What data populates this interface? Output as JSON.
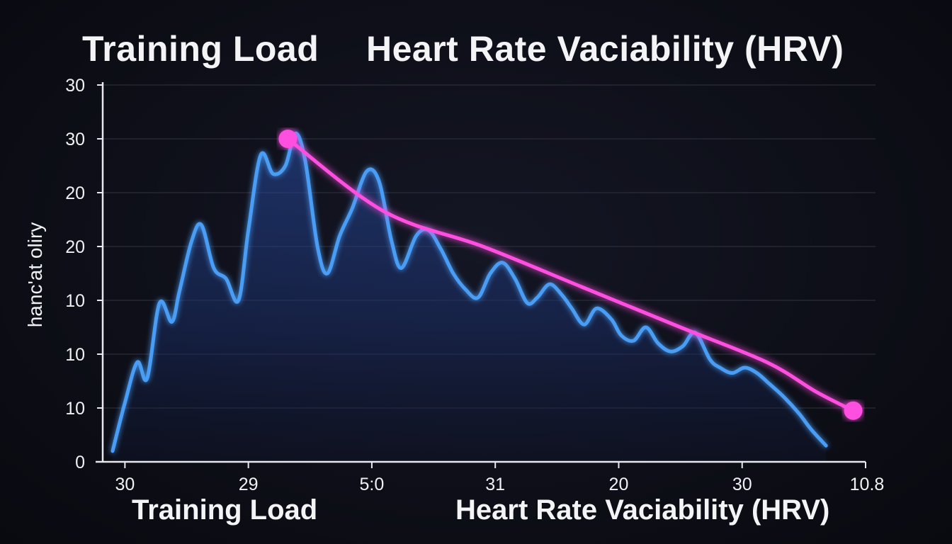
{
  "chart_data": {
    "type": "line",
    "title_left": "Training Load",
    "title_right": "Heart Rate Vaciability (HRV)",
    "xlabel_left": "Training Load",
    "xlabel_right": "Heart Rate Vaciability (HRV)",
    "ylabel": "hanc'at oliry",
    "y_tick_labels": [
      "0",
      "10",
      "10",
      "10",
      "20",
      "20",
      "30",
      "30"
    ],
    "y_tick_values": [
      0,
      1,
      2,
      3,
      4,
      5,
      6,
      7
    ],
    "x_tick_labels": [
      "30",
      "29",
      "5:0",
      "31",
      "20",
      "30",
      "10.8"
    ],
    "x_tick_values": [
      0.5,
      5.5,
      10.5,
      15.5,
      20.5,
      25.5,
      30.5
    ],
    "xlim": [
      -0.4,
      30.5
    ],
    "ylim": [
      0,
      7
    ],
    "grid": true,
    "series": [
      {
        "name": "Training Load",
        "color": "#4a9df5",
        "x": [
          0,
          0.5,
          1.0,
          1.4,
          1.9,
          2.4,
          2.7,
          3.2,
          3.6,
          4.1,
          4.6,
          5.1,
          5.5,
          6.0,
          6.5,
          7.0,
          7.4,
          7.8,
          8.3,
          8.7,
          9.2,
          9.7,
          10.3,
          10.8,
          11.3,
          11.7,
          12.3,
          12.8,
          13.3,
          13.8,
          14.3,
          14.8,
          15.3,
          15.8,
          16.3,
          16.8,
          17.2,
          17.7,
          18.2,
          18.6,
          19.1,
          19.6,
          20.2,
          20.6,
          21.1,
          21.6,
          22.1,
          22.6,
          23.1,
          23.6,
          24.2,
          24.6,
          25.1,
          25.6,
          26.1,
          26.6,
          27.2,
          27.8,
          28.3,
          28.9
        ],
        "y": [
          0.2,
          1.1,
          1.85,
          1.55,
          2.95,
          2.6,
          3.15,
          4.1,
          4.4,
          3.6,
          3.4,
          3.0,
          4.3,
          5.7,
          5.35,
          5.5,
          6.1,
          5.6,
          4.0,
          3.5,
          4.2,
          4.7,
          5.4,
          5.2,
          4.1,
          3.6,
          4.2,
          4.3,
          3.95,
          3.5,
          3.2,
          3.05,
          3.5,
          3.7,
          3.4,
          2.95,
          3.05,
          3.3,
          3.1,
          2.85,
          2.55,
          2.85,
          2.65,
          2.35,
          2.25,
          2.5,
          2.2,
          2.05,
          2.15,
          2.4,
          1.9,
          1.75,
          1.65,
          1.75,
          1.65,
          1.45,
          1.2,
          0.9,
          0.6,
          0.3
        ]
      },
      {
        "name": "Heart Rate Vaciability (HRV)",
        "color": "#ff4fe0",
        "x": [
          7.1,
          11.0,
          15.0,
          19.0,
          23.0,
          26.5,
          28.5,
          30.0
        ],
        "y": [
          6.0,
          4.65,
          4.0,
          3.25,
          2.5,
          1.85,
          1.3,
          0.95
        ]
      }
    ]
  }
}
